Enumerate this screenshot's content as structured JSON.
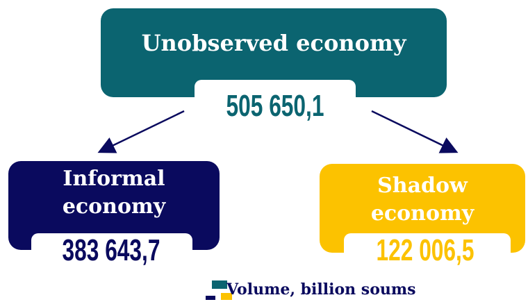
{
  "nodes": [
    {
      "label": "Unobserved economy",
      "value": "505 650,1"
    },
    {
      "label": "Informal economy",
      "value": "383 643,7"
    },
    {
      "label": "Shadow economy",
      "value": "122 006,5"
    }
  ],
  "legend": {
    "label": "Volume, billion soums"
  }
}
